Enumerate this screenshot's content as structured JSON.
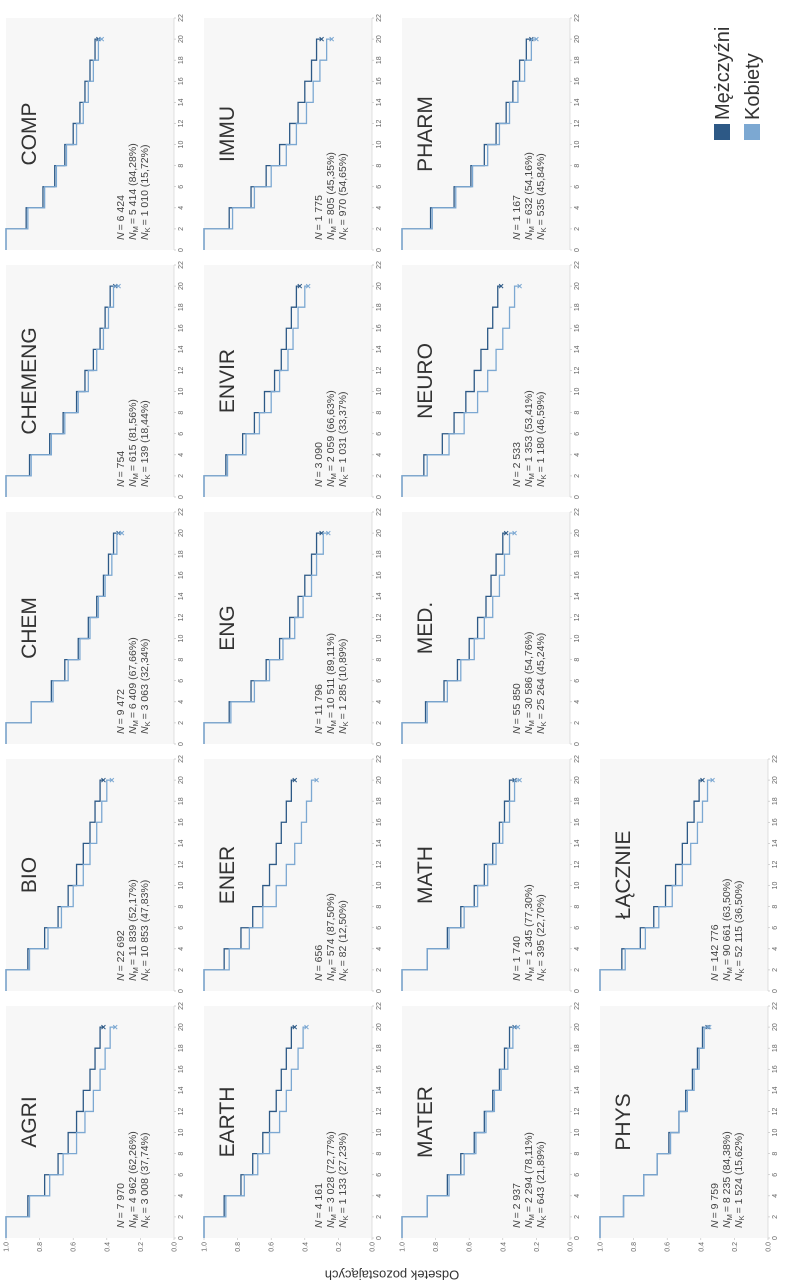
{
  "chart_data": {
    "type": "step",
    "ylabel": "Odsetek pozostających",
    "x": [
      0,
      2,
      4,
      6,
      8,
      10,
      12,
      14,
      16,
      18,
      20
    ],
    "xlim": [
      0,
      22
    ],
    "xticks": [
      0,
      2,
      4,
      6,
      8,
      10,
      12,
      14,
      16,
      18,
      20,
      22
    ],
    "ylim": [
      0,
      1
    ],
    "yticks": [
      {
        "value": 0,
        "label": "0.0"
      },
      {
        "value": 0.2,
        "label": "0.2"
      },
      {
        "value": 0.4,
        "label": "0.4"
      },
      {
        "value": 0.6,
        "label": "0.6"
      },
      {
        "value": 0.8,
        "label": "0.8"
      },
      {
        "value": 1,
        "label": "1.0"
      }
    ],
    "legend": [
      {
        "name": "Mężczyźni",
        "color": "#2d5986"
      },
      {
        "name": "Kobiety",
        "color": "#7ca8d2"
      }
    ],
    "stat_symbol": "N",
    "stat_subscripts": [
      "M",
      "K"
    ],
    "panels": [
      {
        "title": "AGRI",
        "stats": [
          "= 7 970",
          "= 4 962 (62,26%)",
          "= 3 008 (37,74%)"
        ],
        "series": [
          {
            "values": [
              1,
              0.87,
              0.77,
              0.69,
              0.63,
              0.58,
              0.54,
              0.5,
              0.47,
              0.44,
              0.42
            ]
          },
          {
            "values": [
              1,
              0.86,
              0.74,
              0.66,
              0.58,
              0.53,
              0.48,
              0.44,
              0.41,
              0.38,
              0.35
            ]
          }
        ]
      },
      {
        "title": "BIO",
        "stats": [
          "= 22 692",
          "= 11 839 (52,17%)",
          "= 10 853 (47,83%)"
        ],
        "series": [
          {
            "values": [
              1,
              0.87,
              0.77,
              0.69,
              0.63,
              0.58,
              0.54,
              0.5,
              0.47,
              0.44,
              0.42
            ]
          },
          {
            "values": [
              1,
              0.86,
              0.75,
              0.67,
              0.6,
              0.54,
              0.5,
              0.46,
              0.43,
              0.4,
              0.37
            ]
          }
        ]
      },
      {
        "title": "CHEM",
        "stats": [
          "= 9 472",
          "= 6 409 (67,66%)",
          "= 3 063 (32,34%)"
        ],
        "series": [
          {
            "values": [
              1,
              0.85,
              0.73,
              0.65,
              0.57,
              0.51,
              0.46,
              0.42,
              0.39,
              0.36,
              0.33
            ]
          },
          {
            "values": [
              1,
              0.85,
              0.72,
              0.63,
              0.56,
              0.5,
              0.45,
              0.41,
              0.37,
              0.34,
              0.31
            ]
          }
        ]
      },
      {
        "title": "CHEMENG",
        "stats": [
          "= 754",
          "= 615 (81,56%)",
          "= 139 (18,44%)"
        ],
        "series": [
          {
            "values": [
              1,
              0.86,
              0.74,
              0.66,
              0.58,
              0.53,
              0.48,
              0.44,
              0.41,
              0.38,
              0.35
            ]
          },
          {
            "values": [
              1,
              0.85,
              0.73,
              0.65,
              0.57,
              0.51,
              0.46,
              0.42,
              0.39,
              0.36,
              0.33
            ]
          }
        ]
      },
      {
        "title": "COMP",
        "stats": [
          "= 6 424",
          "= 5 414 (84,28%)",
          "= 1 010 (15,72%)"
        ],
        "series": [
          {
            "values": [
              1,
              0.88,
              0.78,
              0.71,
              0.65,
              0.6,
              0.56,
              0.53,
              0.5,
              0.47,
              0.45
            ]
          },
          {
            "values": [
              1,
              0.87,
              0.77,
              0.7,
              0.64,
              0.58,
              0.54,
              0.51,
              0.48,
              0.45,
              0.43
            ]
          }
        ]
      },
      {
        "title": "EARTH",
        "stats": [
          "= 4 161",
          "= 3 028 (72,77%)",
          "= 1 133 (27,23%)"
        ],
        "series": [
          {
            "values": [
              1,
              0.88,
              0.78,
              0.71,
              0.65,
              0.61,
              0.57,
              0.54,
              0.51,
              0.48,
              0.46
            ]
          },
          {
            "values": [
              1,
              0.87,
              0.76,
              0.68,
              0.61,
              0.55,
              0.51,
              0.48,
              0.44,
              0.41,
              0.39
            ]
          }
        ]
      },
      {
        "title": "ENER",
        "stats": [
          "= 656",
          "= 574 (87,50%)",
          "= 82 (12,50%)"
        ],
        "series": [
          {
            "values": [
              1,
              0.88,
              0.78,
              0.71,
              0.65,
              0.61,
              0.57,
              0.54,
              0.51,
              0.48,
              0.46
            ]
          },
          {
            "values": [
              1,
              0.85,
              0.73,
              0.65,
              0.57,
              0.51,
              0.46,
              0.42,
              0.39,
              0.36,
              0.33
            ]
          }
        ]
      },
      {
        "title": "ENG",
        "stats": [
          "= 11 796",
          "= 10 511 (89,11%)",
          "= 1 285 (10,89%)"
        ],
        "series": [
          {
            "values": [
              1,
              0.85,
              0.72,
              0.63,
              0.55,
              0.49,
              0.44,
              0.4,
              0.36,
              0.33,
              0.3
            ]
          },
          {
            "values": [
              1,
              0.84,
              0.7,
              0.61,
              0.53,
              0.46,
              0.41,
              0.36,
              0.33,
              0.29,
              0.26
            ]
          }
        ]
      },
      {
        "title": "ENVIR",
        "stats": [
          "= 3 090",
          "= 2 059 (66,63%)",
          "= 1 031 (33,37%)"
        ],
        "series": [
          {
            "values": [
              1,
              0.87,
              0.77,
              0.7,
              0.64,
              0.58,
              0.54,
              0.51,
              0.48,
              0.45,
              0.43
            ]
          },
          {
            "values": [
              1,
              0.86,
              0.75,
              0.67,
              0.6,
              0.55,
              0.5,
              0.47,
              0.44,
              0.4,
              0.38
            ]
          }
        ]
      },
      {
        "title": "IMMU",
        "stats": [
          "= 1 775",
          "= 805 (45,35%)",
          "= 970 (54,65%)"
        ],
        "series": [
          {
            "values": [
              1,
              0.85,
              0.72,
              0.63,
              0.55,
              0.49,
              0.44,
              0.4,
              0.36,
              0.33,
              0.3
            ]
          },
          {
            "values": [
              1,
              0.83,
              0.7,
              0.6,
              0.51,
              0.45,
              0.39,
              0.35,
              0.31,
              0.27,
              0.24
            ]
          }
        ]
      },
      {
        "title": "MATER",
        "stats": [
          "= 2 937",
          "= 2 294 (78,11%)",
          "= 643 (21,89%)"
        ],
        "series": [
          {
            "values": [
              1,
              0.85,
              0.73,
              0.65,
              0.57,
              0.51,
              0.46,
              0.42,
              0.39,
              0.36,
              0.33
            ]
          },
          {
            "values": [
              1,
              0.85,
              0.72,
              0.63,
              0.56,
              0.5,
              0.45,
              0.41,
              0.37,
              0.34,
              0.31
            ]
          }
        ]
      },
      {
        "title": "MATH",
        "stats": [
          "= 1 740",
          "= 1 345 (77,30%)",
          "= 395 (22,70%)"
        ],
        "series": [
          {
            "values": [
              1,
              0.85,
              0.73,
              0.65,
              0.57,
              0.51,
              0.46,
              0.42,
              0.39,
              0.36,
              0.33
            ]
          },
          {
            "values": [
              1,
              0.85,
              0.72,
              0.63,
              0.55,
              0.49,
              0.44,
              0.4,
              0.36,
              0.33,
              0.3
            ]
          }
        ]
      },
      {
        "title": "MED.",
        "stats": [
          "= 55 850",
          "= 30 586 (54,76%)",
          "= 25 264 (45,24%)"
        ],
        "series": [
          {
            "values": [
              1,
              0.86,
              0.75,
              0.67,
              0.6,
              0.55,
              0.5,
              0.47,
              0.44,
              0.4,
              0.38
            ]
          },
          {
            "values": [
              1,
              0.85,
              0.73,
              0.65,
              0.57,
              0.51,
              0.46,
              0.42,
              0.39,
              0.36,
              0.33
            ]
          }
        ]
      },
      {
        "title": "NEURO",
        "stats": [
          "= 2 533",
          "= 1 353 (53,41%)",
          "= 1 180 (46,59%)"
        ],
        "series": [
          {
            "values": [
              1,
              0.87,
              0.76,
              0.69,
              0.62,
              0.57,
              0.53,
              0.49,
              0.46,
              0.43,
              0.41
            ]
          },
          {
            "values": [
              1,
              0.85,
              0.72,
              0.63,
              0.55,
              0.49,
              0.44,
              0.4,
              0.36,
              0.33,
              0.3
            ]
          }
        ]
      },
      {
        "title": "PHARM",
        "stats": [
          "= 1 167",
          "= 632 (54,16%)",
          "= 535 (45,84%)"
        ],
        "series": [
          {
            "values": [
              1,
              0.83,
              0.69,
              0.59,
              0.51,
              0.44,
              0.38,
              0.34,
              0.3,
              0.26,
              0.23
            ]
          },
          {
            "values": [
              1,
              0.82,
              0.68,
              0.58,
              0.49,
              0.42,
              0.36,
              0.31,
              0.27,
              0.23,
              0.2
            ]
          }
        ]
      },
      {
        "title": "PHYS",
        "stats": [
          "= 9 759",
          "= 8 235 (84,38%)",
          "= 1 524 (15,62%)"
        ],
        "series": [
          {
            "values": [
              1,
              0.86,
              0.74,
              0.66,
              0.59,
              0.53,
              0.49,
              0.45,
              0.42,
              0.39,
              0.36
            ]
          },
          {
            "values": [
              1,
              0.86,
              0.74,
              0.66,
              0.58,
              0.53,
              0.48,
              0.44,
              0.41,
              0.38,
              0.35
            ]
          }
        ]
      },
      {
        "title": "ŁĄCZNIE",
        "stats": [
          "= 142 776",
          "= 90 661 (63,50%)",
          "= 52 115 (36,50%)"
        ],
        "series": [
          {
            "values": [
              1,
              0.87,
              0.76,
              0.68,
              0.61,
              0.55,
              0.51,
              0.48,
              0.44,
              0.41,
              0.39
            ]
          },
          {
            "values": [
              1,
              0.85,
              0.73,
              0.65,
              0.57,
              0.51,
              0.46,
              0.42,
              0.39,
              0.36,
              0.33
            ]
          }
        ]
      }
    ]
  }
}
